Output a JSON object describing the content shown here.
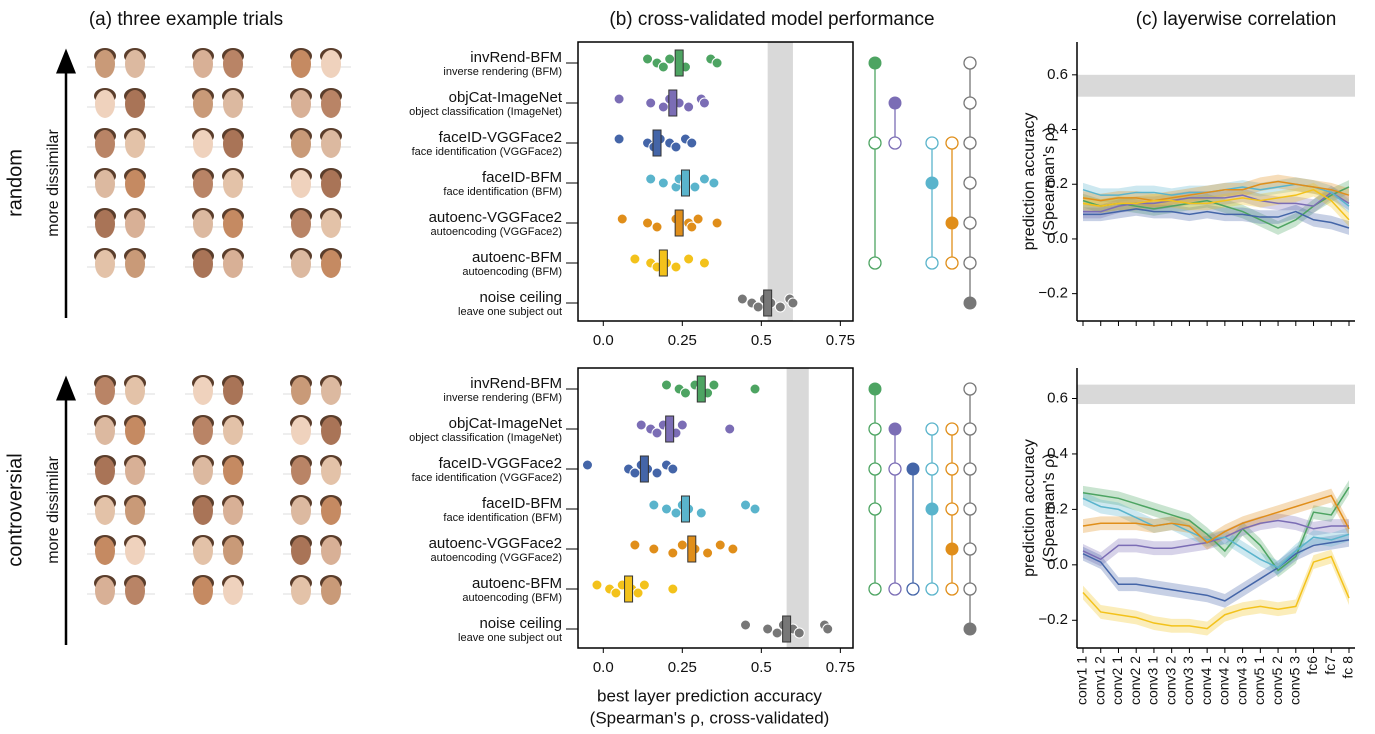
{
  "chart_data": [
    {
      "type": "faces",
      "title": "(a) three example trials",
      "conditions": [
        "random",
        "controversial"
      ],
      "arrow_label": "more dissimilar"
    },
    {
      "type": "strip",
      "title": "(b) cross-validated model performance",
      "xlabel": [
        "best layer prediction accuracy",
        "(Spearman's ρ, cross-validated)"
      ],
      "xlim": [
        -0.08,
        0.79
      ],
      "xticks": [
        {
          "value": 0,
          "label": "0.0"
        },
        0.25,
        0.5,
        0.75
      ],
      "models": [
        {
          "name": "invRend-BFM",
          "description": "inverse rendering (BFM)",
          "color": "#4da462"
        },
        {
          "name": "objCat-ImageNet",
          "description": "object classification (ImageNet)",
          "color": "#7b6db5"
        },
        {
          "name": "faceID-VGGFace2",
          "description": "face identification (VGGFace2)",
          "color": "#4465a8"
        },
        {
          "name": "faceID-BFM",
          "description": "face identification (BFM)",
          "color": "#5ab4cc"
        },
        {
          "name": "autoenc-VGGFace2",
          "description": "autoencoding (VGGFace2)",
          "color": "#e08e1a"
        },
        {
          "name": "autoenc-BFM",
          "description": "autoencoding (BFM)",
          "color": "#f3c21b"
        },
        {
          "name": "noise ceiling",
          "description": "leave one subject out",
          "color": "#777777"
        }
      ],
      "panels": [
        {
          "means": [
            0.24,
            0.22,
            0.17,
            0.26,
            0.24,
            0.19,
            0.52
          ],
          "points": [
            [
              0.14,
              0.17,
              0.19,
              0.21,
              0.24,
              0.26,
              0.34,
              0.36
            ],
            [
              0.05,
              0.15,
              0.19,
              0.21,
              0.24,
              0.27,
              0.31,
              0.32
            ],
            [
              0.05,
              0.14,
              0.16,
              0.18,
              0.21,
              0.23,
              0.26,
              0.28
            ],
            [
              0.15,
              0.19,
              0.23,
              0.24,
              0.26,
              0.29,
              0.32,
              0.35
            ],
            [
              0.06,
              0.14,
              0.17,
              0.23,
              0.27,
              0.28,
              0.3,
              0.36
            ],
            [
              0.1,
              0.15,
              0.17,
              0.19,
              0.2,
              0.23,
              0.27,
              0.32
            ],
            [
              0.44,
              0.47,
              0.49,
              0.51,
              0.53,
              0.56,
              0.59,
              0.6
            ]
          ],
          "ceiling_band": [
            0.52,
            0.6
          ],
          "significance": [
            {
              "model": 0,
              "better_than": [
                2,
                5
              ]
            },
            {
              "model": 1,
              "better_than": [
                2
              ]
            },
            {
              "model": 3,
              "better_than": [
                2,
                5
              ]
            },
            {
              "model": 4,
              "better_than": [
                2,
                5
              ]
            },
            {
              "model": 6,
              "better_than": [
                0,
                1,
                2,
                3,
                4,
                5
              ]
            }
          ]
        },
        {
          "means": [
            0.31,
            0.21,
            0.13,
            0.26,
            0.28,
            0.08,
            0.58
          ],
          "points": [
            [
              0.2,
              0.24,
              0.26,
              0.29,
              0.31,
              0.33,
              0.35,
              0.48
            ],
            [
              0.12,
              0.15,
              0.17,
              0.19,
              0.21,
              0.23,
              0.25,
              0.4
            ],
            [
              -0.05,
              0.08,
              0.1,
              0.12,
              0.14,
              0.17,
              0.2,
              0.22
            ],
            [
              0.16,
              0.2,
              0.23,
              0.25,
              0.27,
              0.31,
              0.45,
              0.48
            ],
            [
              0.1,
              0.16,
              0.22,
              0.25,
              0.29,
              0.33,
              0.37,
              0.41
            ],
            [
              -0.02,
              0.02,
              0.04,
              0.06,
              0.09,
              0.11,
              0.13,
              0.22
            ],
            [
              0.45,
              0.52,
              0.55,
              0.57,
              0.6,
              0.62,
              0.7,
              0.71
            ]
          ],
          "ceiling_band": [
            0.58,
            0.65
          ],
          "significance": [
            {
              "model": 0,
              "better_than": [
                1,
                2,
                3,
                5
              ]
            },
            {
              "model": 1,
              "better_than": [
                2,
                5
              ]
            },
            {
              "model": 2,
              "better_than": [
                5
              ]
            },
            {
              "model": 3,
              "better_than": [
                1,
                2,
                5
              ]
            },
            {
              "model": 4,
              "better_than": [
                1,
                2,
                3,
                5
              ]
            },
            {
              "model": 6,
              "better_than": [
                0,
                1,
                2,
                3,
                4,
                5
              ]
            }
          ]
        }
      ]
    },
    {
      "type": "line",
      "title": "(c) layerwise correlation",
      "ylabel": [
        "prediction accuracy",
        "(Spearman's ρ)"
      ],
      "categories": [
        "conv1 1",
        "conv1 2",
        "conv2 1",
        "conv2 2",
        "conv3 1",
        "conv3 2",
        "conv3 3",
        "conv4 1",
        "conv4 2",
        "conv4 3",
        "conv5 1",
        "conv5 2",
        "conv5 3",
        "fc6",
        "fc7",
        "fc 8"
      ],
      "panels": [
        {
          "ylim": [
            -0.3,
            0.72
          ],
          "yticks": [
            {
              "value": -0.2,
              "label": "−0.2"
            },
            {
              "value": 0,
              "label": "0.0"
            },
            0.2,
            0.4,
            0.6
          ],
          "ceiling_band": [
            0.52,
            0.6
          ],
          "error": 0.025,
          "series": [
            {
              "color": "#4da462",
              "values": [
                0.14,
                0.12,
                0.13,
                0.12,
                0.11,
                0.12,
                0.13,
                0.14,
                0.12,
                0.1,
                0.07,
                0.04,
                0.07,
                0.12,
                0.16,
                0.19
              ]
            },
            {
              "color": "#7b6db5",
              "values": [
                0.1,
                0.1,
                0.12,
                0.13,
                0.13,
                0.14,
                0.15,
                0.15,
                0.15,
                0.16,
                0.14,
                0.13,
                0.13,
                0.12,
                0.17,
                0.13
              ]
            },
            {
              "color": "#4465a8",
              "values": [
                0.09,
                0.09,
                0.1,
                0.11,
                0.1,
                0.1,
                0.09,
                0.1,
                0.09,
                0.09,
                0.08,
                0.08,
                0.1,
                0.07,
                0.06,
                0.04
              ]
            },
            {
              "color": "#5ab4cc",
              "values": [
                0.18,
                0.16,
                0.16,
                0.17,
                0.17,
                0.16,
                0.17,
                0.17,
                0.18,
                0.19,
                0.18,
                0.19,
                0.2,
                0.19,
                0.17,
                0.12
              ]
            },
            {
              "color": "#e08e1a",
              "values": [
                0.15,
                0.14,
                0.15,
                0.15,
                0.14,
                0.15,
                0.16,
                0.17,
                0.18,
                0.18,
                0.2,
                0.21,
                0.2,
                0.19,
                0.18,
                0.16
              ]
            },
            {
              "color": "#f3c21b",
              "values": [
                0.13,
                0.12,
                0.13,
                0.13,
                0.14,
                0.14,
                0.13,
                0.13,
                0.14,
                0.15,
                0.14,
                0.15,
                0.16,
                0.18,
                0.14,
                0.07
              ]
            }
          ]
        },
        {
          "ylim": [
            -0.3,
            0.71
          ],
          "yticks": [
            {
              "value": -0.2,
              "label": "−0.2"
            },
            {
              "value": 0,
              "label": "0.0"
            },
            0.2,
            0.4,
            0.6
          ],
          "ceiling_band": [
            0.58,
            0.65
          ],
          "error": 0.025,
          "series": [
            {
              "color": "#4da462",
              "values": [
                0.26,
                0.25,
                0.24,
                0.22,
                0.2,
                0.18,
                0.16,
                0.11,
                0.05,
                0.13,
                0.07,
                -0.02,
                0.03,
                0.19,
                0.18,
                0.28
              ]
            },
            {
              "color": "#7b6db5",
              "values": [
                0.05,
                0.02,
                0.07,
                0.07,
                0.06,
                0.06,
                0.07,
                0.08,
                0.1,
                0.13,
                0.15,
                0.16,
                0.15,
                0.13,
                0.14,
                0.14
              ]
            },
            {
              "color": "#4465a8",
              "values": [
                0.04,
                0.01,
                -0.07,
                -0.07,
                -0.08,
                -0.09,
                -0.1,
                -0.11,
                -0.13,
                -0.09,
                -0.05,
                -0.01,
                0.04,
                0.07,
                0.08,
                0.09
              ]
            },
            {
              "color": "#5ab4cc",
              "values": [
                0.24,
                0.21,
                0.2,
                0.17,
                0.14,
                0.15,
                0.12,
                0.09,
                0.1,
                0.06,
                0.02,
                -0.01,
                0.05,
                0.1,
                0.09,
                0.11
              ]
            },
            {
              "color": "#e08e1a",
              "values": [
                0.14,
                0.15,
                0.15,
                0.15,
                0.14,
                0.15,
                0.14,
                0.08,
                0.12,
                0.15,
                0.17,
                0.19,
                0.21,
                0.23,
                0.25,
                0.13
              ]
            },
            {
              "color": "#f3c21b",
              "values": [
                -0.1,
                -0.17,
                -0.18,
                -0.19,
                -0.21,
                -0.22,
                -0.22,
                -0.23,
                -0.18,
                -0.16,
                -0.15,
                -0.16,
                -0.15,
                0.01,
                0.03,
                -0.12
              ]
            }
          ]
        }
      ]
    }
  ]
}
